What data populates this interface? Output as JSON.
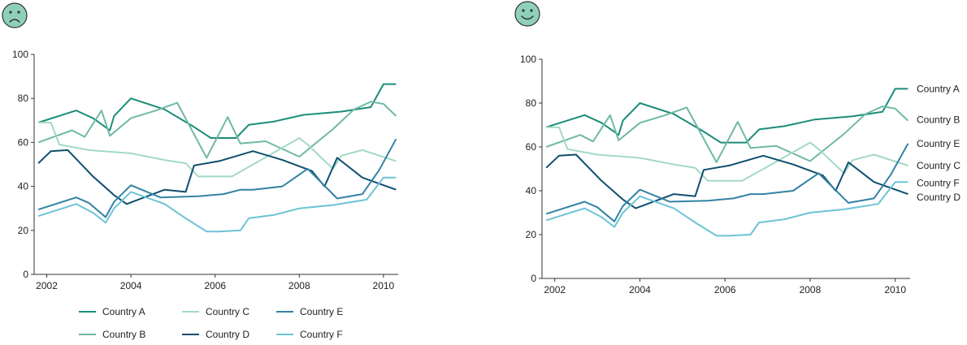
{
  "chart_data": [
    {
      "type": "line",
      "face": "sad",
      "legend_position": "bottom",
      "x_ticks": [
        "2002",
        "2004",
        "2006",
        "2008",
        "2010"
      ],
      "y_ticks": [
        "0",
        "20",
        "40",
        "60",
        "80",
        "100"
      ],
      "xlim": [
        2001.7,
        2010.35
      ],
      "ylim": [
        0,
        100
      ],
      "grid": false,
      "series": [
        {
          "name": "Country A",
          "color": "#1b8c7a",
          "x": [
            2001.8,
            2002.7,
            2003.1,
            2003.5,
            2003.6,
            2004.0,
            2004.8,
            2005.5,
            2005.9,
            2006.5,
            2006.8,
            2007.4,
            2008.1,
            2009.0,
            2009.7,
            2010.0,
            2010.3
          ],
          "y": [
            69,
            74.5,
            71,
            65.5,
            72,
            80,
            75,
            67,
            62,
            62,
            68,
            69.5,
            72.5,
            74,
            76,
            86.5,
            86.5
          ]
        },
        {
          "name": "Country B",
          "color": "#6fb9a4",
          "x": [
            2001.8,
            2002.6,
            2002.9,
            2003.3,
            2003.5,
            2004.0,
            2004.6,
            2005.1,
            2005.8,
            2006.3,
            2006.6,
            2007.2,
            2008.0,
            2008.8,
            2009.3,
            2009.7,
            2010.0,
            2010.3
          ],
          "y": [
            60,
            65.5,
            62.5,
            74.5,
            63,
            71,
            74.5,
            78,
            53,
            71.5,
            59.5,
            60.5,
            53.5,
            66,
            75,
            78.5,
            77.5,
            72
          ]
        },
        {
          "name": "Country C",
          "color": "#a3d9c5",
          "x": [
            2001.8,
            2002.1,
            2002.3,
            2003.0,
            2004.0,
            2004.8,
            2005.3,
            2005.6,
            2006.4,
            2007.0,
            2008.0,
            2008.2,
            2008.8,
            2009.0,
            2009.5,
            2010.3
          ],
          "y": [
            69,
            69,
            59,
            56.5,
            55,
            52,
            50.5,
            44.5,
            44.5,
            51,
            62,
            59,
            48,
            54,
            56.5,
            51.5
          ]
        },
        {
          "name": "Country D",
          "color": "#0e4e70",
          "x": [
            2001.8,
            2002.1,
            2002.5,
            2003.1,
            2003.6,
            2003.9,
            2004.8,
            2005.3,
            2005.5,
            2006.1,
            2006.9,
            2007.6,
            2008.3,
            2008.6,
            2008.9,
            2009.5,
            2010.3
          ],
          "y": [
            50.5,
            56,
            56.5,
            44.5,
            36,
            32,
            38.5,
            37.5,
            49.5,
            51.5,
            56,
            52,
            47,
            40,
            53,
            44,
            38.5
          ]
        },
        {
          "name": "Country E",
          "color": "#3282a3",
          "x": [
            2001.8,
            2002.7,
            2003.0,
            2003.4,
            2003.6,
            2004.0,
            2004.7,
            2005.6,
            2006.2,
            2006.6,
            2006.9,
            2007.6,
            2008.2,
            2008.9,
            2009.5,
            2009.9,
            2010.3
          ],
          "y": [
            29.5,
            35,
            32.5,
            26,
            33,
            40.5,
            35,
            35.5,
            36.5,
            38.5,
            38.5,
            40,
            48,
            34.5,
            36.5,
            47.5,
            61.5
          ]
        },
        {
          "name": "Country F",
          "color": "#6cc3d6",
          "x": [
            2001.8,
            2002.7,
            2003.1,
            2003.4,
            2003.6,
            2004.0,
            2004.8,
            2005.3,
            2005.8,
            2006.1,
            2006.6,
            2006.8,
            2007.4,
            2008.0,
            2008.8,
            2009.6,
            2010.0,
            2010.3
          ],
          "y": [
            26.5,
            32,
            28,
            23.5,
            30,
            37.5,
            32,
            25.5,
            19.5,
            19.5,
            20,
            25.5,
            27,
            30,
            31.5,
            34,
            44,
            44
          ]
        }
      ]
    },
    {
      "type": "line",
      "face": "happy",
      "legend_position": "end-of-line labels",
      "x_ticks": [
        "2002",
        "2004",
        "2006",
        "2008",
        "2010"
      ],
      "y_ticks": [
        "0",
        "20",
        "40",
        "60",
        "80",
        "100"
      ],
      "xlim": [
        2001.7,
        2010.35
      ],
      "ylim": [
        0,
        100
      ],
      "grid": false,
      "series": [
        {
          "name": "Country A",
          "color": "#1b8c7a",
          "label_y": 86.5
        },
        {
          "name": "Country B",
          "color": "#6fb9a4",
          "label_y": 72.5
        },
        {
          "name": "Country E",
          "color": "#3282a3",
          "label_y": 61.5
        },
        {
          "name": "Country C",
          "color": "#a3d9c5",
          "label_y": 51.5
        },
        {
          "name": "Country F",
          "color": "#6cc3d6",
          "label_y": 43.5
        },
        {
          "name": "Country D",
          "color": "#0e4e70",
          "label_y": 37
        }
      ]
    }
  ],
  "colors": {
    "face_fill": "#8fd0b9",
    "face_stroke": "#333333",
    "axis": "#333333"
  }
}
